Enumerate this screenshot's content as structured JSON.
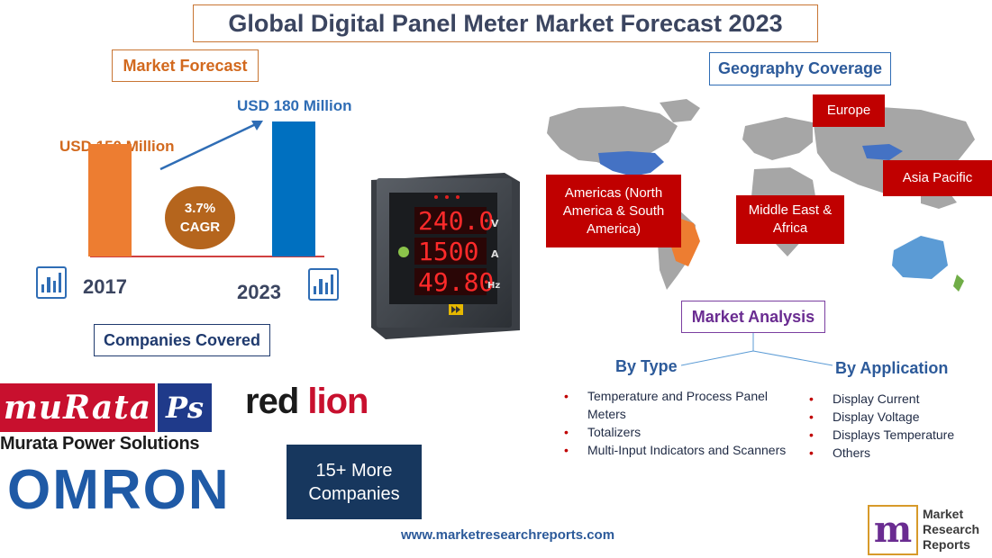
{
  "title": "Global Digital Panel Meter Market Forecast 2023",
  "market_forecast": {
    "label": "Market Forecast",
    "bar_2017": {
      "year": "2017",
      "value_label": "USD 150 Million",
      "value": 150,
      "color": "#ed7d31"
    },
    "bar_2023": {
      "year": "2023",
      "value_label": "USD 180 Million",
      "value": 180,
      "color": "#0070c0"
    },
    "cagr_value": "3.7%",
    "cagr_label": "CAGR"
  },
  "product_image": {
    "readings": [
      "240.0",
      "1500",
      "49.80"
    ],
    "units": [
      "V",
      "A",
      "Hz"
    ]
  },
  "geography": {
    "label": "Geography Coverage",
    "regions": {
      "europe": "Europe",
      "asia_pacific": "Asia Pacific",
      "americas": "Americas (North America & South America)",
      "mea": "Middle East & Africa"
    }
  },
  "market_analysis": {
    "label": "Market Analysis",
    "by_type": {
      "heading": "By Type",
      "items": [
        "Temperature and Process Panel Meters",
        "Totalizers",
        "Multi-Input Indicators and Scanners"
      ]
    },
    "by_application": {
      "heading": "By Application",
      "items": [
        "Display Current",
        "Display Voltage",
        "Displays Temperature",
        "Others"
      ]
    }
  },
  "companies": {
    "label": "Companies Covered",
    "murata_logo": "muRata",
    "murata_ps": "Ps",
    "murata_name": "Murata Power Solutions",
    "omron": "OMRON",
    "redlion_red": "red",
    "redlion_lion": "lion",
    "more_line1": "15+ More",
    "more_line2": "Companies"
  },
  "footer": {
    "website": "www.marketresearchreports.com",
    "logo_line1": "Market",
    "logo_line2": "Research",
    "logo_line3": "Reports"
  },
  "colors": {
    "accent_orange": "#ed7d31",
    "accent_blue": "#0070c0",
    "region_red": "#c00000",
    "map_gray": "#a6a6a6"
  }
}
